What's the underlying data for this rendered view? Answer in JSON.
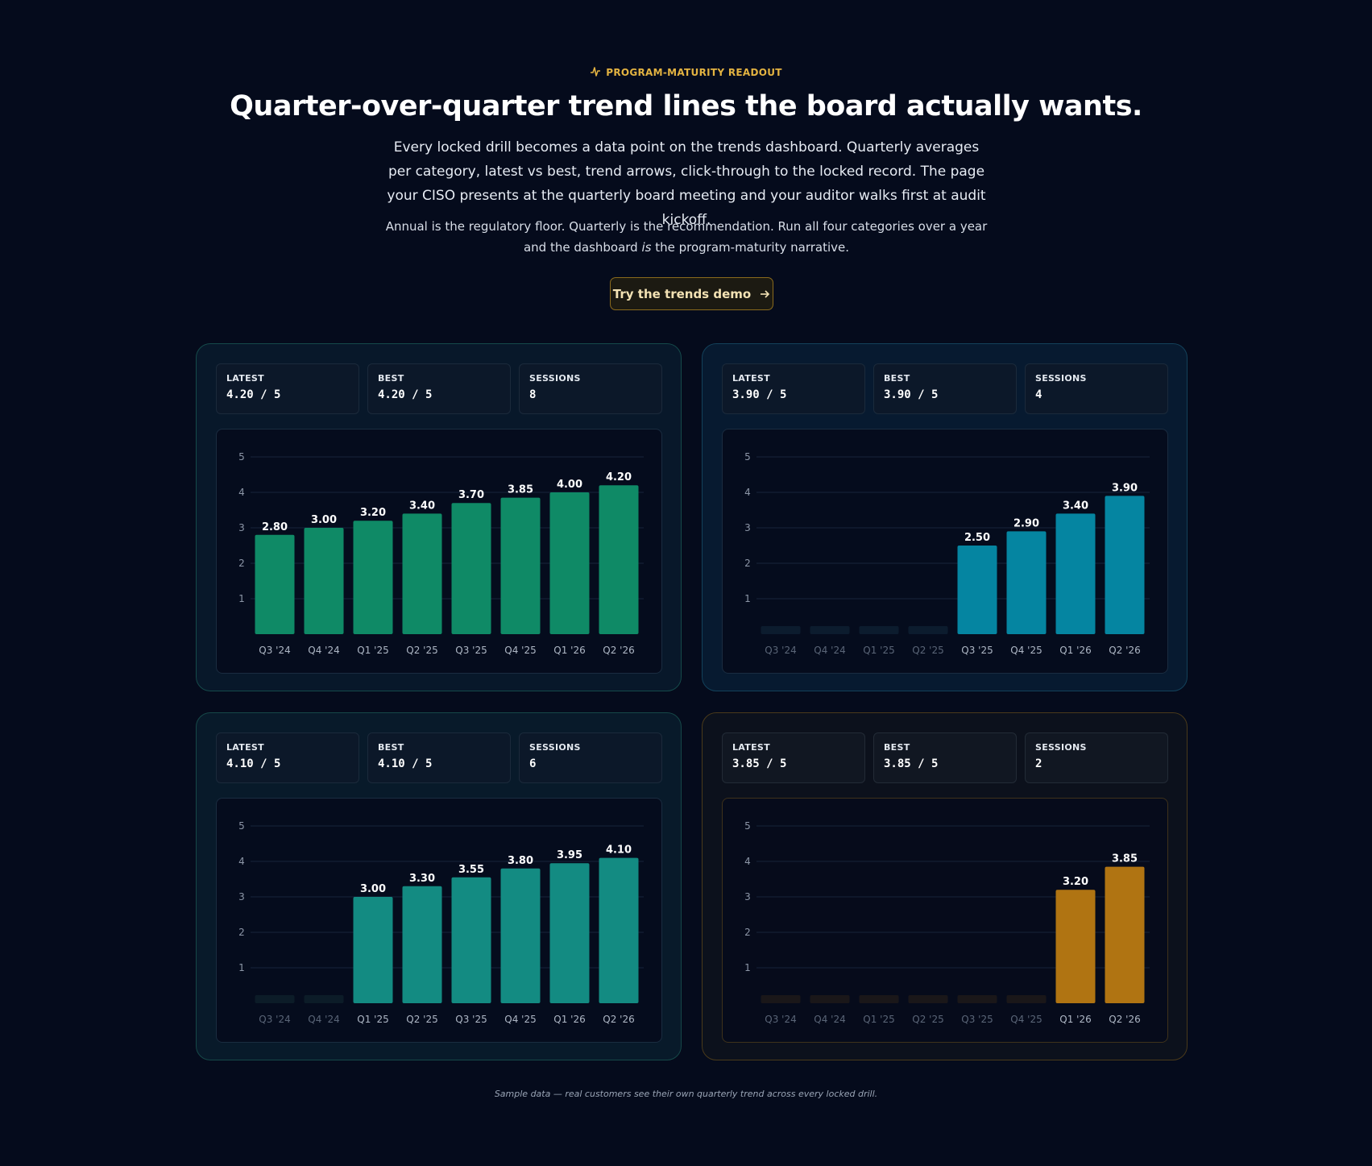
{
  "header": {
    "eyebrow": "PROGRAM-MATURITY READOUT",
    "title": "Quarter-over-quarter trend lines the board actually wants.",
    "lede": "Every locked drill becomes a data point on the trends dashboard. Quarterly averages per category, latest vs best, trend arrows, click-through to the locked record. The page your CISO presents at the quarterly board meeting and your auditor walks first at audit kickoff.",
    "sub_before": "Annual is the regulatory floor. Quarterly is the recommendation. Run all four categories over a year and the dashboard ",
    "sub_em": "is",
    "sub_after": " the program-maturity narrative.",
    "cta_label": "Try the trends demo"
  },
  "stat_labels": {
    "latest": "LATEST",
    "best": "BEST",
    "sessions": "SESSIONS"
  },
  "cards": [
    {
      "latest": "4.20 / 5",
      "best": "4.20 / 5",
      "sessions": "8"
    },
    {
      "latest": "3.90 / 5",
      "best": "3.90 / 5",
      "sessions": "4"
    },
    {
      "latest": "4.10 / 5",
      "best": "4.10 / 5",
      "sessions": "6"
    },
    {
      "latest": "3.85 / 5",
      "best": "3.85 / 5",
      "sessions": "2"
    }
  ],
  "chart_data": [
    {
      "type": "bar",
      "categories": [
        "Q3 '24",
        "Q4 '24",
        "Q1 '25",
        "Q2 '25",
        "Q3 '25",
        "Q4 '25",
        "Q1 '26",
        "Q2 '26"
      ],
      "values": [
        2.8,
        3.0,
        3.2,
        3.4,
        3.7,
        3.85,
        4.0,
        4.2
      ],
      "yticks": [
        1,
        2,
        3,
        4,
        5
      ],
      "ylim": [
        0,
        5
      ],
      "color": "#0f8a66",
      "grid": true
    },
    {
      "type": "bar",
      "categories": [
        "Q3 '24",
        "Q4 '24",
        "Q1 '25",
        "Q2 '25",
        "Q3 '25",
        "Q4 '25",
        "Q1 '26",
        "Q2 '26"
      ],
      "values": [
        null,
        null,
        null,
        null,
        2.5,
        2.9,
        3.4,
        3.9
      ],
      "yticks": [
        1,
        2,
        3,
        4,
        5
      ],
      "ylim": [
        0,
        5
      ],
      "color": "#0585a1",
      "empty_color": "#0c1c2e",
      "grid": true
    },
    {
      "type": "bar",
      "categories": [
        "Q3 '24",
        "Q4 '24",
        "Q1 '25",
        "Q2 '25",
        "Q3 '25",
        "Q4 '25",
        "Q1 '26",
        "Q2 '26"
      ],
      "values": [
        null,
        null,
        3.0,
        3.3,
        3.55,
        3.8,
        3.95,
        4.1
      ],
      "yticks": [
        1,
        2,
        3,
        4,
        5
      ],
      "ylim": [
        0,
        5
      ],
      "color": "#138b82",
      "empty_color": "#0c1c28",
      "grid": true
    },
    {
      "type": "bar",
      "categories": [
        "Q3 '24",
        "Q4 '24",
        "Q1 '25",
        "Q2 '25",
        "Q3 '25",
        "Q4 '25",
        "Q1 '26",
        "Q2 '26"
      ],
      "values": [
        null,
        null,
        null,
        null,
        null,
        null,
        3.2,
        3.85
      ],
      "yticks": [
        1,
        2,
        3,
        4,
        5
      ],
      "ylim": [
        0,
        5
      ],
      "color": "#b07412",
      "empty_color": "#1a1719",
      "grid": true
    }
  ],
  "footnote": "Sample data — real customers see their own quarterly trend across every locked drill."
}
